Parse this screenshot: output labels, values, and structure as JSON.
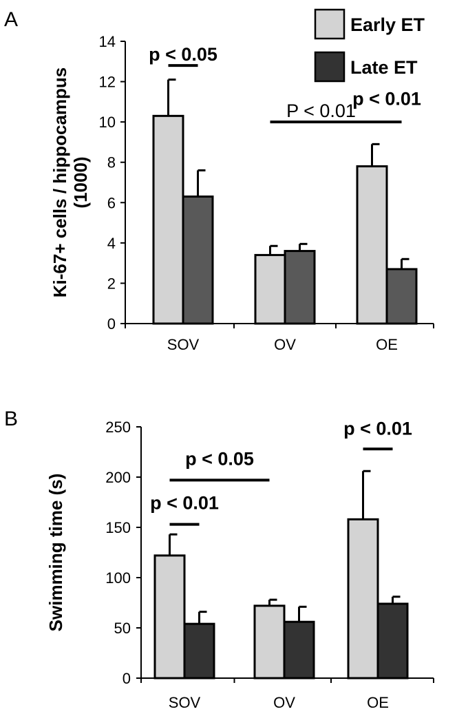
{
  "legend": [
    {
      "label": "Early ET",
      "color": "#d3d3d3"
    },
    {
      "label": "Late ET",
      "color": "#333333"
    }
  ],
  "chart_data": [
    {
      "panel": "A",
      "type": "bar",
      "categories": [
        "SOV",
        "OV",
        "OE"
      ],
      "ylabel_lines": [
        "Ki-67+ cells / hippocampus",
        "(1000)"
      ],
      "ylim": [
        0,
        14
      ],
      "yticks": [
        0,
        2,
        4,
        6,
        8,
        10,
        12,
        14
      ],
      "series": [
        {
          "name": "Early ET",
          "color": "#d3d3d3",
          "values": [
            10.3,
            3.4,
            7.8
          ],
          "errors": [
            1.8,
            0.45,
            1.1
          ]
        },
        {
          "name": "Late ET",
          "color": "#595959",
          "values": [
            6.3,
            3.6,
            2.7
          ],
          "errors": [
            1.3,
            0.35,
            0.5
          ]
        }
      ],
      "annotations": [
        {
          "text": "p < 0.05",
          "bold": true,
          "x1": [
            0,
            0
          ],
          "x2": [
            0,
            1
          ],
          "line_y": 12.8,
          "text_y": 13.05
        },
        {
          "text": "P < 0.01",
          "bold": false,
          "x1": [
            1,
            0
          ],
          "x2": [
            2,
            0
          ],
          "line_y": 10.0,
          "text_y": 10.25
        },
        {
          "text": "p < 0.01",
          "bold": true,
          "x1": [
            2,
            0
          ],
          "x2": [
            2,
            1
          ],
          "line_y": 10.0,
          "text_y": 10.85
        }
      ]
    },
    {
      "panel": "B",
      "type": "bar",
      "categories": [
        "SOV",
        "OV",
        "OE"
      ],
      "ylabel_lines": [
        "Swimming time (s)"
      ],
      "ylim": [
        0,
        250
      ],
      "yticks": [
        0,
        50,
        100,
        150,
        200,
        250
      ],
      "series": [
        {
          "name": "Early ET",
          "color": "#d3d3d3",
          "values": [
            122,
            72,
            158
          ],
          "errors": [
            21,
            6,
            48
          ]
        },
        {
          "name": "Late ET",
          "color": "#333333",
          "values": [
            54,
            56,
            74
          ],
          "errors": [
            12,
            15,
            7
          ]
        }
      ],
      "annotations": [
        {
          "text": "p < 0.05",
          "bold": true,
          "x1": [
            0,
            0
          ],
          "x2": [
            1,
            0
          ],
          "line_y": 197,
          "text_y": 212
        },
        {
          "text": "p < 0.01",
          "bold": true,
          "x1": [
            0,
            0
          ],
          "x2": [
            0,
            1
          ],
          "line_y": 153,
          "text_y": 168
        },
        {
          "text": "p < 0.01",
          "bold": true,
          "x1": [
            2,
            0
          ],
          "x2": [
            2,
            1
          ],
          "line_y": 228,
          "text_y": 242
        }
      ]
    }
  ]
}
